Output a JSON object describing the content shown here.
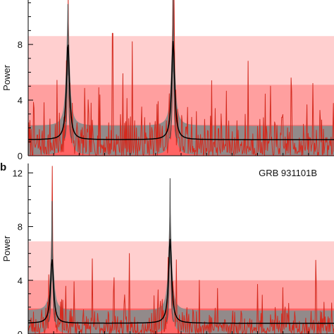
{
  "chart_data": [
    {
      "type": "line",
      "panel_label": "",
      "annotation": "",
      "xlabel": "",
      "ylabel": "Power",
      "ylim": [
        0,
        11.5
      ],
      "yticks": [
        0,
        4,
        8
      ],
      "ytick_labels": [
        "0",
        "4",
        "8"
      ],
      "xlim": [
        0,
        1
      ],
      "grid": false,
      "significance_bands": [
        {
          "from": 0,
          "to": 8.6,
          "color": "#ffcfcf"
        },
        {
          "from": 0,
          "to": 5.1,
          "color": "#ff9f9f"
        },
        {
          "from": 0,
          "to": 2.2,
          "color": "#ff6464"
        }
      ],
      "model_peaks": [
        {
          "center": 0.13,
          "height": 7.0,
          "width": 0.006
        },
        {
          "center": 0.474,
          "height": 7.1,
          "width": 0.006
        }
      ],
      "model_baseline": 1.15,
      "uncertainty_band": {
        "lower_offset": -1.1,
        "upper_offset": 1.0,
        "color": "#8c8c8c"
      },
      "sharp_peaks": [
        {
          "center": 0.13,
          "height": 10.9
        },
        {
          "center": 0.474,
          "height": 11.5
        }
      ],
      "spikes": [
        {
          "x": 0.276,
          "y": 8.8
        },
        {
          "x": 0.34,
          "y": 8.2
        },
        {
          "x": 0.72,
          "y": 6.8
        },
        {
          "x": 0.86,
          "y": 5.6
        },
        {
          "x": 0.31,
          "y": 5.9
        },
        {
          "x": 0.6,
          "y": 5.4
        },
        {
          "x": 0.93,
          "y": 5.2
        },
        {
          "x": 0.23,
          "y": 4.9
        }
      ],
      "line_colors": {
        "periodogram": "#d42a1e",
        "model": "#000000",
        "peak": "#555555"
      },
      "noise_seed": 7
    },
    {
      "type": "line",
      "panel_label": "b",
      "annotation": "GRB 931101B",
      "xlabel": "",
      "ylabel": "Power",
      "ylim": [
        0,
        12.7
      ],
      "yticks": [
        0,
        4,
        8,
        12
      ],
      "ytick_labels": [
        "0",
        "4",
        "8",
        "12"
      ],
      "xlim": [
        0,
        1
      ],
      "grid": false,
      "significance_bands": [
        {
          "from": 0,
          "to": 6.9,
          "color": "#ffcfcf"
        },
        {
          "from": 0,
          "to": 4.0,
          "color": "#ff9f9f"
        },
        {
          "from": 0,
          "to": 1.9,
          "color": "#ff6464"
        }
      ],
      "model_peaks": [
        {
          "center": 0.078,
          "height": 4.8,
          "width": 0.006
        },
        {
          "center": 0.464,
          "height": 6.3,
          "width": 0.006
        }
      ],
      "model_baseline": 0.8,
      "uncertainty_band": {
        "lower_offset": -0.8,
        "upper_offset": 0.95,
        "color": "#8c8c8c"
      },
      "sharp_peaks": [
        {
          "center": 0.078,
          "height": 9.9
        },
        {
          "center": 0.464,
          "height": 11.6
        }
      ],
      "spikes": [
        {
          "x": 0.21,
          "y": 5.6
        },
        {
          "x": 0.33,
          "y": 6.0
        },
        {
          "x": 0.94,
          "y": 5.5
        },
        {
          "x": 0.56,
          "y": 4.0
        },
        {
          "x": 0.28,
          "y": 4.2
        },
        {
          "x": 0.62,
          "y": 3.4
        },
        {
          "x": 0.75,
          "y": 3.7
        },
        {
          "x": 0.15,
          "y": 3.9
        }
      ],
      "line_colors": {
        "periodogram": "#d42a1e",
        "model": "#000000",
        "peak": "#555555"
      },
      "noise_seed": 23
    }
  ]
}
